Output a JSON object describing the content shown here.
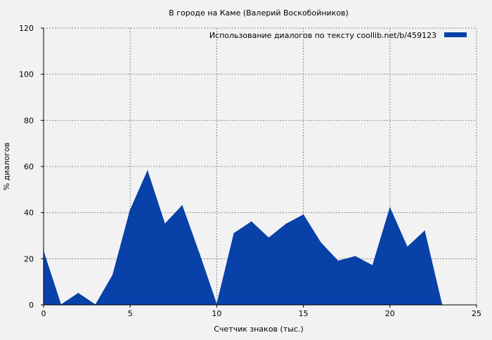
{
  "chart_data": {
    "type": "area",
    "title": "В городе на Каме (Валерий Воскобойников)",
    "xlabel": "Счетчик знаков (тыс.)",
    "ylabel": "% диалогов",
    "xlim": [
      0,
      25
    ],
    "ylim": [
      0,
      120
    ],
    "x_ticks": [
      0,
      5,
      10,
      15,
      20,
      25
    ],
    "y_ticks": [
      0,
      20,
      40,
      60,
      80,
      100,
      120
    ],
    "grid": true,
    "legend_position": "top-right",
    "series": [
      {
        "name": "Использование диалогов по тексту  coollib.net/b/459123",
        "color": "#0841a8",
        "x": [
          0,
          1,
          2,
          3,
          4,
          5,
          6,
          7,
          8,
          9,
          10,
          11,
          12,
          13,
          14,
          15,
          16,
          17,
          18,
          19,
          20,
          21,
          22,
          23
        ],
        "values": [
          23,
          0,
          5,
          0,
          13,
          41,
          58,
          35,
          43,
          22,
          0,
          31,
          36,
          29,
          35,
          39,
          27,
          19,
          21,
          17,
          42,
          25,
          32,
          0
        ]
      }
    ]
  }
}
